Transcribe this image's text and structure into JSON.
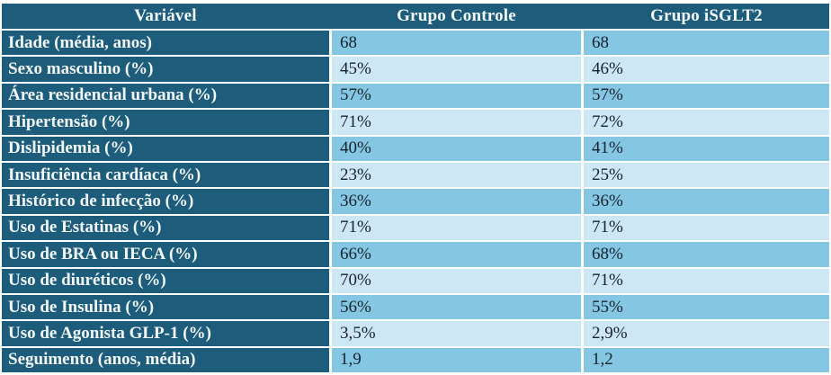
{
  "table": {
    "columns": [
      "Variável",
      "Grupo Controle",
      "Grupo iSGLT2"
    ],
    "rows": [
      {
        "label": "Idade (média, anos)",
        "control": "68",
        "isglt2": "68"
      },
      {
        "label": "Sexo masculino (%)",
        "control": "45%",
        "isglt2": "46%"
      },
      {
        "label": "Área residencial urbana (%)",
        "control": "57%",
        "isglt2": "57%"
      },
      {
        "label": "Hipertensão (%)",
        "control": "71%",
        "isglt2": "72%"
      },
      {
        "label": "Dislipidemia (%)",
        "control": "40%",
        "isglt2": "41%"
      },
      {
        "label": "Insuficiência cardíaca (%)",
        "control": "23%",
        "isglt2": "25%"
      },
      {
        "label": "Histórico de infecção (%)",
        "control": "36%",
        "isglt2": "36%"
      },
      {
        "label": "Uso de Estatinas (%)",
        "control": "71%",
        "isglt2": "71%"
      },
      {
        "label": "Uso de BRA ou IECA (%)",
        "control": "66%",
        "isglt2": "68%"
      },
      {
        "label": "Uso de diuréticos (%)",
        "control": "70%",
        "isglt2": "71%"
      },
      {
        "label": "Uso de Insulina (%)",
        "control": "56%",
        "isglt2": "55%"
      },
      {
        "label": "Uso de Agonista GLP-1 (%)",
        "control": "3,5%",
        "isglt2": "2,9%"
      },
      {
        "label": "Seguimento (anos, média)",
        "control": "1,9",
        "isglt2": "1,2"
      }
    ],
    "colors": {
      "header_bg": "#1e5c7c",
      "label_column_bg": "#1e5c7c",
      "row_medium_bg": "#85c6e2",
      "row_light_bg": "#cde7f4",
      "header_text": "#f3f9fc",
      "value_text": "#16242f",
      "separator": "#fdfdfd"
    }
  }
}
